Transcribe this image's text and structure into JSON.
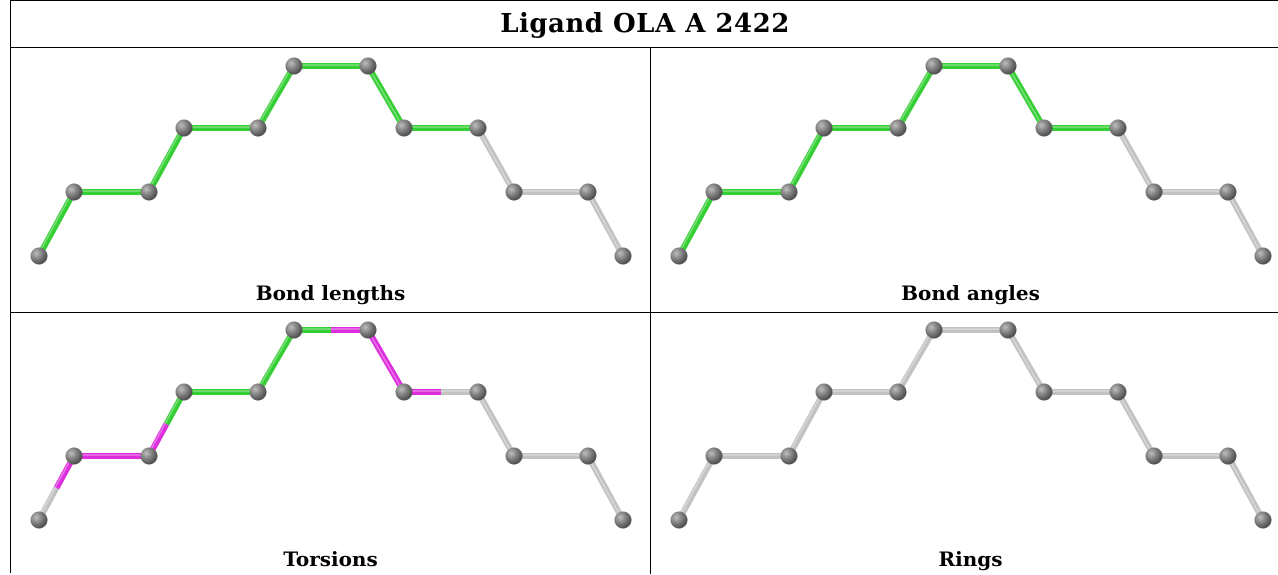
{
  "title": "Ligand OLA A 2422",
  "colors": {
    "atom": "#7d7d7d",
    "green": "#35cf35",
    "magenta": "#dd2edd",
    "gray": "#c2c2c2"
  },
  "panels": [
    {
      "caption": "Bond lengths",
      "bond_colors": [
        "green",
        "green",
        "green",
        "green",
        "green",
        "green",
        "green",
        "green",
        "green",
        "green",
        "green",
        "green",
        "green",
        "green",
        "green",
        "green"
      ]
    },
    {
      "caption": "Bond angles",
      "bond_colors": [
        "green",
        "green",
        "green",
        "green",
        "green",
        "green",
        "green",
        "green",
        "green",
        "green",
        "green",
        "green",
        "green",
        "green",
        "green",
        "green"
      ]
    },
    {
      "caption": "Torsions",
      "bond_colors": [
        "gray",
        "magenta",
        "magenta",
        "magenta",
        "magenta",
        "green",
        "green",
        "green",
        "green",
        "green",
        "green",
        "magenta",
        "magenta",
        "magenta",
        "magenta",
        "gray"
      ]
    },
    {
      "caption": "Rings",
      "bond_colors": [
        "gray",
        "gray",
        "gray",
        "gray",
        "gray",
        "gray",
        "gray",
        "gray",
        "gray",
        "gray",
        "gray",
        "gray",
        "gray",
        "gray",
        "gray",
        "gray"
      ]
    }
  ]
}
